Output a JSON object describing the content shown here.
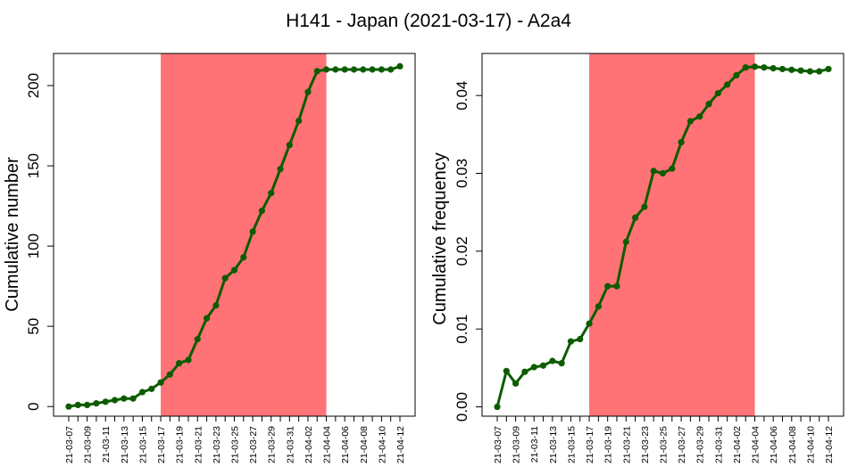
{
  "figure": {
    "title": "H141 - Japan (2021-03-17) - A2a4"
  },
  "chart_data": [
    {
      "type": "line",
      "title": "",
      "xlabel": "",
      "ylabel": "Cumulative number",
      "x": [
        "21-03-07",
        "21-03-08",
        "21-03-09",
        "21-03-10",
        "21-03-11",
        "21-03-12",
        "21-03-13",
        "21-03-14",
        "21-03-15",
        "21-03-16",
        "21-03-17",
        "21-03-18",
        "21-03-19",
        "21-03-20",
        "21-03-21",
        "21-03-22",
        "21-03-23",
        "21-03-24",
        "21-03-25",
        "21-03-26",
        "21-03-27",
        "21-03-28",
        "21-03-29",
        "21-03-30",
        "21-03-31",
        "21-04-01",
        "21-04-02",
        "21-04-03",
        "21-04-04",
        "21-04-05",
        "21-04-06",
        "21-04-07",
        "21-04-08",
        "21-04-09",
        "21-04-10",
        "21-04-11",
        "21-04-12"
      ],
      "x_tick_labels": [
        "21-03-07",
        "21-03-09",
        "21-03-11",
        "21-03-13",
        "21-03-15",
        "21-03-17",
        "21-03-19",
        "21-03-21",
        "21-03-23",
        "21-03-25",
        "21-03-27",
        "21-03-29",
        "21-03-31",
        "21-04-02",
        "21-04-04",
        "21-04-06",
        "21-04-08",
        "21-04-10",
        "21-04-12"
      ],
      "y_ticks": [
        0,
        50,
        100,
        150,
        200
      ],
      "y_tick_labels": [
        "0",
        "50",
        "100",
        "150",
        "200"
      ],
      "ylim": [
        -6,
        220
      ],
      "highlight_range": [
        "21-03-17",
        "21-04-04"
      ],
      "highlight_color": "#ff7276",
      "line_color": "#0d5c00",
      "series": [
        {
          "values": [
            0,
            1,
            1,
            2,
            3,
            4,
            5,
            5,
            9,
            11,
            15,
            20,
            27,
            29,
            42,
            55,
            63,
            80,
            85,
            93,
            109,
            122,
            133,
            148,
            163,
            178,
            196,
            209,
            210,
            210,
            210,
            210,
            210,
            210,
            210,
            210,
            212
          ]
        }
      ]
    },
    {
      "type": "line",
      "title": "",
      "xlabel": "",
      "ylabel": "Cumulative frequency",
      "x": [
        "21-03-07",
        "21-03-08",
        "21-03-09",
        "21-03-10",
        "21-03-11",
        "21-03-12",
        "21-03-13",
        "21-03-14",
        "21-03-15",
        "21-03-16",
        "21-03-17",
        "21-03-18",
        "21-03-19",
        "21-03-20",
        "21-03-21",
        "21-03-22",
        "21-03-23",
        "21-03-24",
        "21-03-25",
        "21-03-26",
        "21-03-27",
        "21-03-28",
        "21-03-29",
        "21-03-30",
        "21-03-31",
        "21-04-01",
        "21-04-02",
        "21-04-03",
        "21-04-04",
        "21-04-05",
        "21-04-06",
        "21-04-07",
        "21-04-08",
        "21-04-09",
        "21-04-10",
        "21-04-11",
        "21-04-12"
      ],
      "x_tick_labels": [
        "21-03-07",
        "21-03-09",
        "21-03-11",
        "21-03-13",
        "21-03-15",
        "21-03-17",
        "21-03-19",
        "21-03-21",
        "21-03-23",
        "21-03-25",
        "21-03-27",
        "21-03-29",
        "21-03-31",
        "21-04-02",
        "21-04-04",
        "21-04-06",
        "21-04-08",
        "21-04-10",
        "21-04-12"
      ],
      "y_ticks": [
        0,
        0.01,
        0.02,
        0.03,
        0.04
      ],
      "y_tick_labels": [
        "0.00",
        "0.01",
        "0.02",
        "0.03",
        "0.04"
      ],
      "ylim": [
        -0.0012,
        0.0454
      ],
      "highlight_range": [
        "21-03-17",
        "21-04-04"
      ],
      "highlight_color": "#ff7276",
      "line_color": "#0d5c00",
      "series": [
        {
          "values": [
            0,
            0.0046,
            0.003,
            0.0045,
            0.0051,
            0.0053,
            0.0059,
            0.0056,
            0.0084,
            0.0087,
            0.0107,
            0.0129,
            0.0155,
            0.0155,
            0.0212,
            0.0243,
            0.0257,
            0.0303,
            0.03,
            0.0306,
            0.034,
            0.0367,
            0.0373,
            0.0389,
            0.0403,
            0.0414,
            0.0426,
            0.0436,
            0.0437,
            0.0436,
            0.0435,
            0.0434,
            0.0433,
            0.0432,
            0.0431,
            0.0431,
            0.0434
          ]
        }
      ]
    }
  ]
}
